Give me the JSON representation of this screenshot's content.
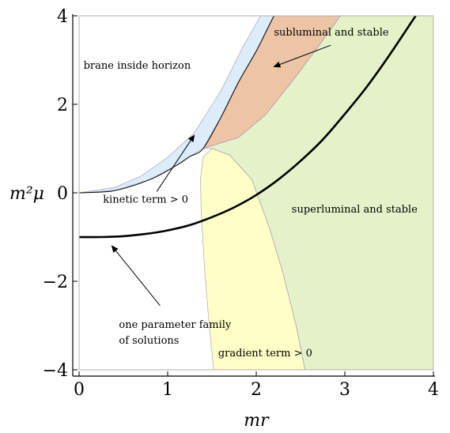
{
  "chart_data": {
    "type": "area",
    "xlabel": "mr",
    "ylabel": "m²μ",
    "xlim": [
      0,
      4
    ],
    "ylim": [
      -4,
      4
    ],
    "x_ticks": [
      {
        "v": 0,
        "label": "0"
      },
      {
        "v": 1,
        "label": "1"
      },
      {
        "v": 2,
        "label": "2"
      },
      {
        "v": 3,
        "label": "3"
      },
      {
        "v": 4,
        "label": "4"
      }
    ],
    "y_ticks": [
      {
        "v": 4,
        "label": "4"
      },
      {
        "v": 2,
        "label": "2"
      },
      {
        "v": 0,
        "label": "0"
      },
      {
        "v": -2,
        "label": "−2"
      },
      {
        "v": -4,
        "label": "−4"
      }
    ],
    "regions": [
      {
        "label": "kinetic term > 0",
        "color": "#dcecfb",
        "polygon": [
          [
            0,
            0
          ],
          [
            0.4,
            0.05
          ],
          [
            0.8,
            0.3
          ],
          [
            1.1,
            0.62
          ],
          [
            1.25,
            0.82
          ],
          [
            1.4,
            1.0
          ],
          [
            1.6,
            1.7
          ],
          [
            1.8,
            2.5
          ],
          [
            2.0,
            3.2
          ],
          [
            2.1,
            3.6
          ],
          [
            2.2,
            4.0
          ],
          [
            2.05,
            4.0
          ],
          [
            1.85,
            3.3
          ],
          [
            1.6,
            2.3
          ],
          [
            1.3,
            1.35
          ],
          [
            1.0,
            0.8
          ],
          [
            0.7,
            0.38
          ],
          [
            0.4,
            0.12
          ],
          [
            0,
            0
          ]
        ]
      },
      {
        "label": "subluminal and stable",
        "color": "#edc4a6",
        "polygon": [
          [
            1.4,
            1.0
          ],
          [
            1.8,
            1.25
          ],
          [
            2.1,
            1.75
          ],
          [
            2.4,
            2.5
          ],
          [
            2.7,
            3.3
          ],
          [
            2.95,
            4.0
          ],
          [
            2.2,
            4.0
          ],
          [
            2.1,
            3.6
          ],
          [
            2.0,
            3.2
          ],
          [
            1.8,
            2.5
          ],
          [
            1.6,
            1.7
          ]
        ]
      },
      {
        "label": "superluminal and stable",
        "color": "#e5f2c9",
        "polygon": [
          [
            1.4,
            1.0
          ],
          [
            1.8,
            1.25
          ],
          [
            2.1,
            1.75
          ],
          [
            2.4,
            2.5
          ],
          [
            2.7,
            3.3
          ],
          [
            2.95,
            4.0
          ],
          [
            4.0,
            4.0
          ],
          [
            4.0,
            -4.0
          ],
          [
            2.55,
            -4.0
          ],
          [
            2.45,
            -3.0
          ],
          [
            2.3,
            -1.8
          ],
          [
            2.15,
            -0.8
          ],
          [
            1.95,
            0.3
          ],
          [
            1.7,
            0.85
          ],
          [
            1.5,
            1.0
          ]
        ]
      },
      {
        "label": "gradient term > 0",
        "color": "#fffec6",
        "polygon": [
          [
            1.5,
            1.0
          ],
          [
            1.7,
            0.85
          ],
          [
            1.95,
            0.3
          ],
          [
            2.15,
            -0.8
          ],
          [
            2.3,
            -1.8
          ],
          [
            2.45,
            -3.0
          ],
          [
            2.55,
            -4.0
          ],
          [
            1.52,
            -4.0
          ],
          [
            1.47,
            -3.0
          ],
          [
            1.42,
            -1.8
          ],
          [
            1.38,
            -0.5
          ],
          [
            1.37,
            0.3
          ],
          [
            1.4,
            0.8
          ]
        ]
      }
    ],
    "boundary_lines": [
      {
        "name": "brane inside horizon",
        "color": "#000000",
        "points": [
          [
            0,
            0
          ],
          [
            0.4,
            0.05
          ],
          [
            0.8,
            0.3
          ],
          [
            1.1,
            0.62
          ],
          [
            1.25,
            0.82
          ],
          [
            1.4,
            1.0
          ],
          [
            1.6,
            1.7
          ],
          [
            1.8,
            2.5
          ],
          [
            2.0,
            3.2
          ],
          [
            2.1,
            3.6
          ],
          [
            2.2,
            4.0
          ]
        ]
      }
    ],
    "series": [
      {
        "name": "one parameter family of solutions",
        "color": "#000000",
        "x": [
          0,
          0.25,
          0.5,
          0.75,
          1.0,
          1.25,
          1.5,
          1.75,
          2.0,
          2.25,
          2.5,
          2.75,
          3.0,
          3.25,
          3.5,
          3.75,
          3.8
        ],
        "y": [
          -1.0,
          -1.0,
          -0.98,
          -0.93,
          -0.85,
          -0.73,
          -0.55,
          -0.33,
          -0.05,
          0.3,
          0.72,
          1.2,
          1.78,
          2.4,
          3.1,
          3.85,
          4.0
        ]
      }
    ],
    "annotations": [
      {
        "lines": [
          "brane inside horizon"
        ],
        "pos": [
          0.05,
          2.8
        ]
      },
      {
        "lines": [
          "subluminal and stable"
        ],
        "pos": [
          2.2,
          3.55
        ],
        "arrow_to": [
          2.2,
          2.85
        ]
      },
      {
        "lines": [
          "kinetic term > 0"
        ],
        "pos": [
          0.27,
          -0.22
        ],
        "arrow_to": [
          1.3,
          1.3
        ]
      },
      {
        "lines": [
          "superluminal and stable"
        ],
        "pos": [
          2.4,
          -0.45
        ]
      },
      {
        "lines": [
          "one parameter family",
          "of solutions"
        ],
        "pos": [
          0.45,
          -3.05
        ],
        "arrow_to": [
          0.37,
          -1.2
        ]
      },
      {
        "lines": [
          "gradient term > 0"
        ],
        "pos": [
          1.57,
          -3.7
        ]
      }
    ],
    "grid": false
  }
}
